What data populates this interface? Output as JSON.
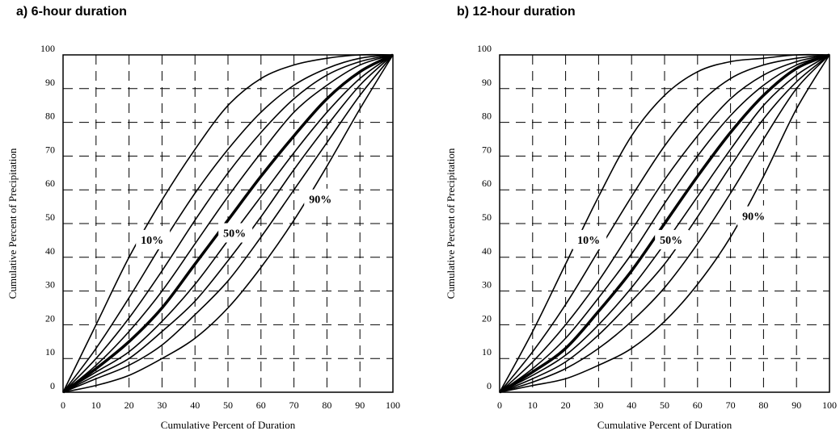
{
  "panels": [
    {
      "title": "a) 6-hour duration"
    },
    {
      "title": "b) 12-hour duration"
    }
  ],
  "chart_data": [
    {
      "type": "line",
      "title": "a) 6-hour duration",
      "xlabel": "Cumulative Percent of Duration",
      "ylabel": "Cumulative Percent of Precipitation",
      "xlim": [
        0,
        100
      ],
      "ylim": [
        0,
        100
      ],
      "xticks": [
        "0",
        "10",
        "20",
        "30",
        "40",
        "50",
        "60",
        "70",
        "80",
        "90",
        "100"
      ],
      "yticks": [
        "0",
        "10",
        "20",
        "30",
        "40",
        "50",
        "60",
        "70",
        "80",
        "90",
        "100"
      ],
      "grid": true,
      "annotations": [
        {
          "text": "10%",
          "x": 27,
          "y": 45
        },
        {
          "text": "50%",
          "x": 52,
          "y": 47
        },
        {
          "text": "90%",
          "x": 78,
          "y": 57
        }
      ],
      "series": [
        {
          "percentile": 10,
          "x": [
            0,
            10,
            20,
            30,
            40,
            50,
            60,
            70,
            80,
            90,
            100
          ],
          "y": [
            0,
            20,
            40,
            57,
            72,
            85,
            93,
            97,
            99,
            100,
            100
          ]
        },
        {
          "percentile": 20,
          "x": [
            0,
            10,
            20,
            30,
            40,
            50,
            60,
            70,
            80,
            90,
            100
          ],
          "y": [
            0,
            13,
            28,
            44,
            59,
            72,
            83,
            91,
            96,
            99,
            100
          ]
        },
        {
          "percentile": 30,
          "x": [
            0,
            10,
            20,
            30,
            40,
            50,
            60,
            70,
            80,
            90,
            100
          ],
          "y": [
            0,
            10,
            22,
            36,
            51,
            65,
            77,
            87,
            94,
            98,
            100
          ]
        },
        {
          "percentile": 40,
          "x": [
            0,
            10,
            20,
            30,
            40,
            50,
            60,
            70,
            80,
            90,
            100
          ],
          "y": [
            0,
            8,
            18,
            30,
            44,
            58,
            71,
            83,
            91,
            97,
            100
          ]
        },
        {
          "percentile": 50,
          "x": [
            0,
            10,
            20,
            30,
            40,
            50,
            60,
            70,
            80,
            90,
            100
          ],
          "y": [
            0,
            7,
            15,
            25,
            38,
            51,
            64,
            76,
            87,
            95,
            100
          ]
        },
        {
          "percentile": 60,
          "x": [
            0,
            10,
            20,
            30,
            40,
            50,
            60,
            70,
            80,
            90,
            100
          ],
          "y": [
            0,
            6,
            12,
            21,
            32,
            45,
            58,
            71,
            83,
            93,
            100
          ]
        },
        {
          "percentile": 70,
          "x": [
            0,
            10,
            20,
            30,
            40,
            50,
            60,
            70,
            80,
            90,
            100
          ],
          "y": [
            0,
            5,
            10,
            18,
            27,
            39,
            52,
            66,
            79,
            91,
            100
          ]
        },
        {
          "percentile": 80,
          "x": [
            0,
            10,
            20,
            30,
            40,
            50,
            60,
            70,
            80,
            90,
            100
          ],
          "y": [
            0,
            4,
            8,
            14,
            23,
            33,
            46,
            60,
            74,
            88,
            100
          ]
        },
        {
          "percentile": 90,
          "x": [
            0,
            10,
            20,
            30,
            40,
            50,
            60,
            70,
            80,
            90,
            100
          ],
          "y": [
            0,
            2,
            5,
            10,
            16,
            25,
            37,
            51,
            67,
            84,
            100
          ]
        }
      ]
    },
    {
      "type": "line",
      "title": "b) 12-hour duration",
      "xlabel": "Cumulative Percent of Duration",
      "ylabel": "Cumulative Percent of Precipitation",
      "xlim": [
        0,
        100
      ],
      "ylim": [
        0,
        100
      ],
      "xticks": [
        "0",
        "10",
        "20",
        "30",
        "40",
        "50",
        "60",
        "70",
        "80",
        "90",
        "100"
      ],
      "yticks": [
        "0",
        "10",
        "20",
        "30",
        "40",
        "50",
        "60",
        "70",
        "80",
        "90",
        "100"
      ],
      "grid": true,
      "annotations": [
        {
          "text": "10%",
          "x": 27,
          "y": 45
        },
        {
          "text": "50%",
          "x": 52,
          "y": 45
        },
        {
          "text": "90%",
          "x": 77,
          "y": 52
        }
      ],
      "series": [
        {
          "percentile": 10,
          "x": [
            0,
            10,
            20,
            30,
            40,
            50,
            60,
            70,
            80,
            90,
            100
          ],
          "y": [
            0,
            18,
            38,
            58,
            76,
            88,
            95,
            98,
            99,
            100,
            100
          ]
        },
        {
          "percentile": 20,
          "x": [
            0,
            10,
            20,
            30,
            40,
            50,
            60,
            70,
            80,
            90,
            100
          ],
          "y": [
            0,
            12,
            26,
            42,
            58,
            73,
            85,
            93,
            97,
            99,
            100
          ]
        },
        {
          "percentile": 30,
          "x": [
            0,
            10,
            20,
            30,
            40,
            50,
            60,
            70,
            80,
            90,
            100
          ],
          "y": [
            0,
            9,
            20,
            33,
            48,
            63,
            76,
            87,
            94,
            98,
            100
          ]
        },
        {
          "percentile": 40,
          "x": [
            0,
            10,
            20,
            30,
            40,
            50,
            60,
            70,
            80,
            90,
            100
          ],
          "y": [
            0,
            7,
            16,
            28,
            41,
            56,
            70,
            82,
            91,
            97,
            100
          ]
        },
        {
          "percentile": 50,
          "x": [
            0,
            10,
            20,
            30,
            40,
            50,
            60,
            70,
            80,
            90,
            100
          ],
          "y": [
            0,
            6,
            13,
            24,
            36,
            50,
            64,
            77,
            88,
            96,
            100
          ]
        },
        {
          "percentile": 60,
          "x": [
            0,
            10,
            20,
            30,
            40,
            50,
            60,
            70,
            80,
            90,
            100
          ],
          "y": [
            0,
            5,
            11,
            20,
            31,
            44,
            58,
            72,
            85,
            94,
            100
          ]
        },
        {
          "percentile": 70,
          "x": [
            0,
            10,
            20,
            30,
            40,
            50,
            60,
            70,
            80,
            90,
            100
          ],
          "y": [
            0,
            4,
            9,
            17,
            27,
            38,
            52,
            67,
            81,
            92,
            100
          ]
        },
        {
          "percentile": 80,
          "x": [
            0,
            10,
            20,
            30,
            40,
            50,
            60,
            70,
            80,
            90,
            100
          ],
          "y": [
            0,
            3,
            7,
            13,
            21,
            31,
            44,
            59,
            75,
            90,
            100
          ]
        },
        {
          "percentile": 90,
          "x": [
            0,
            10,
            20,
            30,
            40,
            50,
            60,
            70,
            80,
            90,
            100
          ],
          "y": [
            0,
            2,
            4,
            8,
            13,
            21,
            32,
            46,
            64,
            84,
            100
          ]
        }
      ]
    }
  ]
}
